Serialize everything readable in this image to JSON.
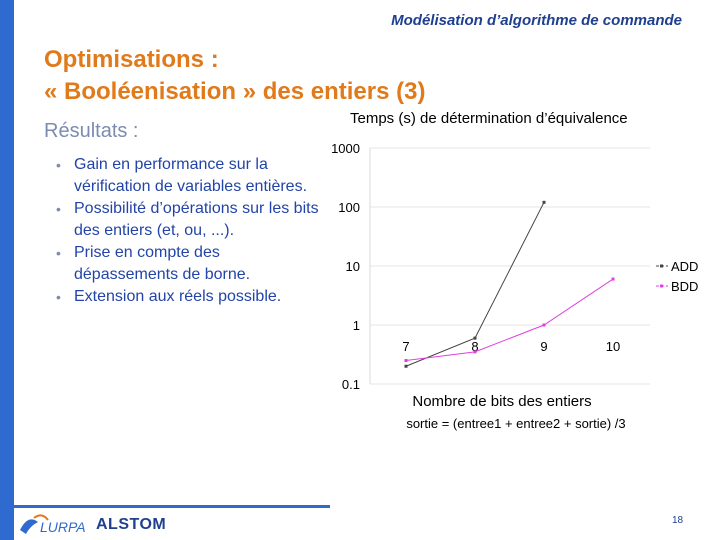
{
  "header": {
    "text": "Modélisation d’algorithme de commande"
  },
  "title": {
    "line1": "Optimisations :",
    "line2": "« Booléenisation » des entiers (3)"
  },
  "results_heading": "Résultats :",
  "bullets": [
    "Gain en performance sur la vérification de variables entières.",
    "Possibilité d’opérations sur les bits des entiers (et, ou, ...).",
    "Prise en compte des dépassements de borne.",
    "Extension aux réels possible."
  ],
  "bullet_glyph": "•",
  "chart_data": {
    "type": "line",
    "title": "Temps (s) de détermination d’équivalence",
    "xlabel": "Nombre de bits des entiers",
    "caption": "sortie = (entree1 + entree2 + sortie) /3",
    "y_scale": "log",
    "ylim": [
      0.1,
      1000
    ],
    "y_ticks": [
      "1000",
      "100",
      "10",
      "1",
      "0.1"
    ],
    "y_tick_values": [
      1000,
      100,
      10,
      1,
      0.1
    ],
    "categories": [
      "7",
      "8",
      "9",
      "10"
    ],
    "series": [
      {
        "name": "ADD",
        "color": "#444444",
        "values": [
          0.2,
          0.6,
          120,
          null
        ]
      },
      {
        "name": "BDD",
        "color": "#e040e0",
        "values": [
          0.25,
          0.35,
          1.0,
          6.0
        ]
      }
    ],
    "legend_position": "right",
    "grid": true
  },
  "footer": {
    "logo_text": "ALSTOM",
    "page_number": "18"
  }
}
